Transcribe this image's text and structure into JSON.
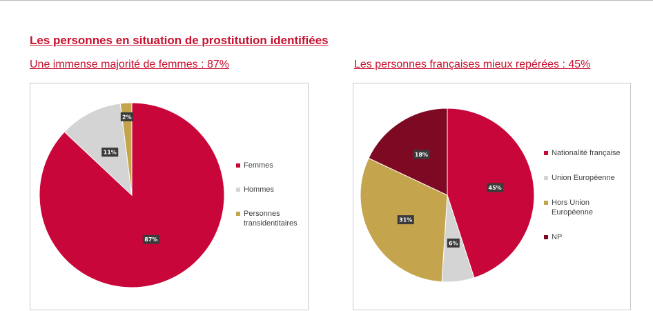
{
  "main_title": "Les personnes en situation de prostitution identifiées",
  "chart_data": [
    {
      "type": "pie",
      "title": "Une immense majorité de femmes : 87%",
      "slices": [
        {
          "label": "Femmes",
          "value": 87,
          "display": "87%",
          "color": "#c8063a"
        },
        {
          "label": "Hommes",
          "value": 11,
          "display": "11%",
          "color": "#d4d4d4"
        },
        {
          "label": "Personnes transidentitaires",
          "value": 2,
          "display": "2%",
          "color": "#c4a54e"
        }
      ],
      "legend_position": "right"
    },
    {
      "type": "pie",
      "title": "Les personnes françaises mieux repérées : 45%",
      "slices": [
        {
          "label": "Nationalité française",
          "value": 45,
          "display": "45%",
          "color": "#c8063a"
        },
        {
          "label": "Union Européenne",
          "value": 6,
          "display": "6%",
          "color": "#d4d4d4"
        },
        {
          "label": "Hors Union Européenne",
          "value": 31,
          "display": "31%",
          "color": "#c4a54e"
        },
        {
          "label": "NP",
          "value": 18,
          "display": "18%",
          "color": "#7d0a22"
        }
      ],
      "legend_position": "right"
    }
  ]
}
